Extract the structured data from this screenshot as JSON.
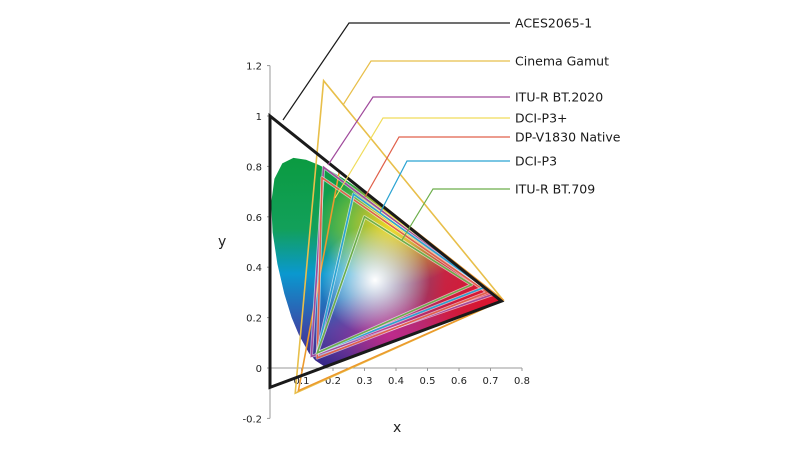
{
  "chart_data": {
    "type": "chromaticity-diagram",
    "xlabel": "x",
    "ylabel": "y",
    "xlim": [
      0,
      0.8
    ],
    "ylim": [
      -0.2,
      1.2
    ],
    "x_ticks": [
      "0.1",
      "0.2",
      "0.3",
      "0.4",
      "0.5",
      "0.6",
      "0.7",
      "0.8"
    ],
    "x_tick_values": [
      0.1,
      0.2,
      0.3,
      0.4,
      0.5,
      0.6,
      0.7,
      0.8
    ],
    "y_ticks": [
      "-0.2",
      "0",
      "0.2",
      "0.4",
      "0.6",
      "0.8",
      "1",
      "1.2"
    ],
    "y_tick_values": [
      -0.2,
      0,
      0.2,
      0.4,
      0.6,
      0.8,
      1,
      1.2
    ],
    "spectral_locus": [
      [
        0.1741,
        0.005
      ],
      [
        0.144,
        0.0297
      ],
      [
        0.1241,
        0.0578
      ],
      [
        0.0913,
        0.1327
      ],
      [
        0.0687,
        0.2007
      ],
      [
        0.0454,
        0.295
      ],
      [
        0.0235,
        0.4127
      ],
      [
        0.0082,
        0.5384
      ],
      [
        0.0039,
        0.6548
      ],
      [
        0.0139,
        0.7502
      ],
      [
        0.0389,
        0.812
      ],
      [
        0.0743,
        0.8338
      ],
      [
        0.1142,
        0.8262
      ],
      [
        0.1547,
        0.8059
      ],
      [
        0.1929,
        0.7816
      ],
      [
        0.2296,
        0.7543
      ],
      [
        0.2658,
        0.7243
      ],
      [
        0.3016,
        0.6923
      ],
      [
        0.3373,
        0.6589
      ],
      [
        0.3731,
        0.6245
      ],
      [
        0.4087,
        0.5896
      ],
      [
        0.4441,
        0.5547
      ],
      [
        0.4788,
        0.5202
      ],
      [
        0.5125,
        0.4866
      ],
      [
        0.5448,
        0.4544
      ],
      [
        0.5752,
        0.4242
      ],
      [
        0.6029,
        0.3965
      ],
      [
        0.627,
        0.3725
      ],
      [
        0.6482,
        0.3514
      ],
      [
        0.6658,
        0.334
      ],
      [
        0.6801,
        0.3197
      ],
      [
        0.6915,
        0.3083
      ],
      [
        0.7006,
        0.2993
      ],
      [
        0.7347,
        0.2653
      ]
    ],
    "series": [
      {
        "name": "ACES2065-1",
        "color": "#1a1a1a",
        "primaries": [
          [
            0.7347,
            0.2653
          ],
          [
            0.0,
            1.0
          ],
          [
            0.0001,
            -0.077
          ]
        ]
      },
      {
        "name": "Cinema Gamut",
        "color": "#e8bf4a",
        "primaries": [
          [
            0.74,
            0.27
          ],
          [
            0.17,
            1.14
          ],
          [
            0.08,
            -0.1
          ]
        ]
      },
      {
        "name": "ITU-R BT.2020",
        "color": "#a04a9c",
        "primaries": [
          [
            0.708,
            0.292
          ],
          [
            0.17,
            0.797
          ],
          [
            0.131,
            0.046
          ]
        ]
      },
      {
        "name": "DCI-P3+",
        "color": "#ec9a2e",
        "primaries": [
          [
            0.74,
            0.27
          ],
          [
            0.22,
            0.78
          ],
          [
            0.09,
            -0.09
          ]
        ]
      },
      {
        "name": "DP-V1830 Native",
        "color": "#e0604a",
        "primaries": [
          [
            0.69,
            0.3
          ],
          [
            0.165,
            0.755
          ],
          [
            0.15,
            0.04
          ]
        ]
      },
      {
        "name": "DCI-P3",
        "color": "#2aa3d2",
        "primaries": [
          [
            0.68,
            0.32
          ],
          [
            0.265,
            0.69
          ],
          [
            0.15,
            0.06
          ]
        ]
      },
      {
        "name": "ITU-R BT.709",
        "color": "#6cae4a",
        "primaries": [
          [
            0.64,
            0.33
          ],
          [
            0.3,
            0.6
          ],
          [
            0.15,
            0.06
          ]
        ]
      }
    ]
  }
}
